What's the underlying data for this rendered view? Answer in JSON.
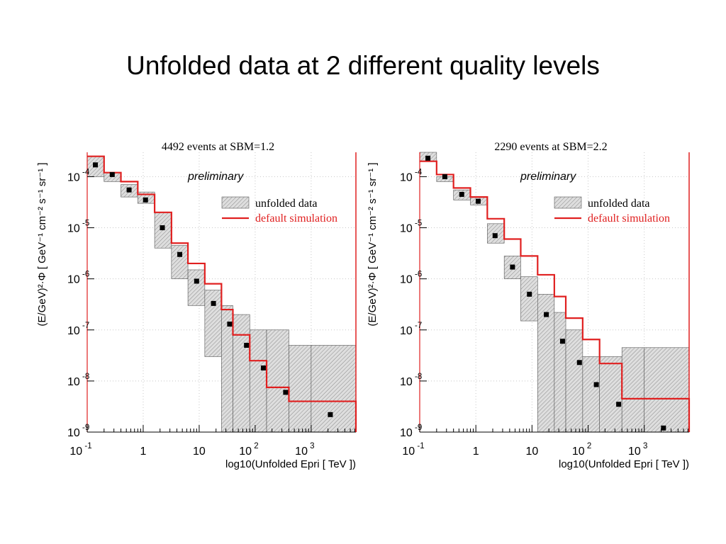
{
  "slide": {
    "title": "Unfolded data at 2 different quality levels"
  },
  "colors": {
    "simulation": "#e02020",
    "band_fill": "#dedede",
    "band_stroke": "#555555",
    "point": "#000000"
  },
  "chart_data": [
    {
      "type": "step",
      "title": "4492 events at SBM=1.2",
      "annotation": "preliminary",
      "xlabel": "log10(Unfolded Epri [ TeV ])",
      "ylabel": "(E/GeV)²·Φ [ GeV⁻¹ cm⁻² s⁻¹ sr⁻¹ ]",
      "x_scale": "log",
      "y_scale": "log",
      "xlim": [
        0.1,
        6300
      ],
      "ylim": [
        1e-09,
        0.0003
      ],
      "x_ticks": [
        {
          "base": "10",
          "exp": "-1"
        },
        {
          "base": "1",
          "exp": ""
        },
        {
          "base": "10",
          "exp": ""
        },
        {
          "base": "10",
          "exp": "2"
        },
        {
          "base": "10",
          "exp": "3"
        }
      ],
      "y_ticks": [
        {
          "base": "10",
          "exp": "-4"
        },
        {
          "base": "10",
          "exp": "-5"
        },
        {
          "base": "10",
          "exp": "-6"
        },
        {
          "base": "10",
          "exp": "-7"
        },
        {
          "base": "10",
          "exp": "-8"
        },
        {
          "base": "10",
          "exp": "-9"
        }
      ],
      "legend": {
        "position": "top-right",
        "data_label": "unfolded data",
        "sim_label": "default simulation"
      },
      "bin_edges": [
        0.1,
        0.2,
        0.4,
        0.8,
        1.6,
        3.2,
        6.3,
        12.6,
        25,
        40,
        80,
        160,
        400,
        1000,
        6300
      ],
      "simulation": [
        0.00025,
        0.00012,
        8e-05,
        4.5e-05,
        2e-05,
        5e-06,
        2e-06,
        8e-07,
        2.5e-07,
        8e-08,
        2.5e-08,
        7.5e-09,
        4e-09,
        4e-09
      ],
      "band_low": [
        0.0001,
        8e-05,
        4e-05,
        3e-05,
        4e-06,
        1e-06,
        3e-07,
        3e-08,
        1e-09,
        1e-09,
        1e-09,
        1e-09,
        1e-09,
        1e-09
      ],
      "band_high": [
        0.00025,
        0.00012,
        7e-05,
        5e-05,
        2e-05,
        4.5e-06,
        1.5e-06,
        6e-07,
        3e-07,
        2e-07,
        1e-07,
        1e-07,
        5e-08,
        5e-08
      ],
      "points": [
        {
          "x": 0.14,
          "y": 0.00017
        },
        {
          "x": 0.28,
          "y": 0.00011
        },
        {
          "x": 0.56,
          "y": 5.5e-05
        },
        {
          "x": 1.1,
          "y": 3.5e-05
        },
        {
          "x": 2.2,
          "y": 1e-05
        },
        {
          "x": 4.5,
          "y": 3e-06
        },
        {
          "x": 9,
          "y": 9e-07
        },
        {
          "x": 18,
          "y": 3.3e-07
        },
        {
          "x": 35,
          "y": 1.3e-07
        },
        {
          "x": 70,
          "y": 5e-08
        },
        {
          "x": 140,
          "y": 1.8e-08
        },
        {
          "x": 350,
          "y": 6e-09
        },
        {
          "x": 2200,
          "y": 2.2e-09
        }
      ]
    },
    {
      "type": "step",
      "title": "2290 events at SBM=2.2",
      "annotation": "preliminary",
      "xlabel": "log10(Unfolded Epri [ TeV ])",
      "ylabel": "(E/GeV)²·Φ [ GeV⁻¹ cm⁻² s⁻¹ sr⁻¹ ]",
      "x_scale": "log",
      "y_scale": "log",
      "xlim": [
        0.1,
        6300
      ],
      "ylim": [
        1e-09,
        0.0003
      ],
      "x_ticks": [
        {
          "base": "10",
          "exp": "-1"
        },
        {
          "base": "1",
          "exp": ""
        },
        {
          "base": "10",
          "exp": ""
        },
        {
          "base": "10",
          "exp": "2"
        },
        {
          "base": "10",
          "exp": "3"
        }
      ],
      "y_ticks": [
        {
          "base": "10",
          "exp": "-4"
        },
        {
          "base": "10",
          "exp": "-5"
        },
        {
          "base": "10",
          "exp": "-6"
        },
        {
          "base": "10",
          "exp": "-7"
        },
        {
          "base": "10",
          "exp": "-8"
        },
        {
          "base": "10",
          "exp": "-9"
        }
      ],
      "legend": {
        "position": "top-right",
        "data_label": "unfolded data",
        "sim_label": "default simulation"
      },
      "bin_edges": [
        0.1,
        0.2,
        0.4,
        0.8,
        1.6,
        3.2,
        6.3,
        12.6,
        25,
        40,
        80,
        160,
        400,
        1000,
        6300
      ],
      "simulation": [
        0.0002,
        0.00011,
        6e-05,
        4e-05,
        1.5e-05,
        6e-06,
        2.8e-06,
        1.2e-06,
        4.5e-07,
        1.7e-07,
        6.5e-08,
        2.2e-08,
        4.5e-09,
        4.5e-09
      ],
      "band_low": [
        0.0002,
        8e-05,
        3.5e-05,
        2.8e-05,
        5e-06,
        1e-06,
        1.5e-07,
        1e-09,
        1e-09,
        1e-09,
        1e-09,
        1e-09,
        1e-09,
        1e-09
      ],
      "band_high": [
        0.0003,
        0.0001,
        5.5e-05,
        4e-05,
        1.2e-05,
        2.8e-06,
        1.1e-06,
        5e-07,
        2.2e-07,
        1e-07,
        3e-08,
        3e-08,
        4.5e-08,
        4.5e-08
      ],
      "points": [
        {
          "x": 0.14,
          "y": 0.00023
        },
        {
          "x": 0.28,
          "y": 0.0001
        },
        {
          "x": 0.56,
          "y": 4.5e-05
        },
        {
          "x": 1.1,
          "y": 3.3e-05
        },
        {
          "x": 2.2,
          "y": 7e-06
        },
        {
          "x": 4.5,
          "y": 1.7e-06
        },
        {
          "x": 9,
          "y": 5e-07
        },
        {
          "x": 18,
          "y": 2e-07
        },
        {
          "x": 35,
          "y": 6e-08
        },
        {
          "x": 70,
          "y": 2.3e-08
        },
        {
          "x": 140,
          "y": 8.5e-09
        },
        {
          "x": 350,
          "y": 3.5e-09
        },
        {
          "x": 2200,
          "y": 1.2e-09
        }
      ]
    }
  ]
}
